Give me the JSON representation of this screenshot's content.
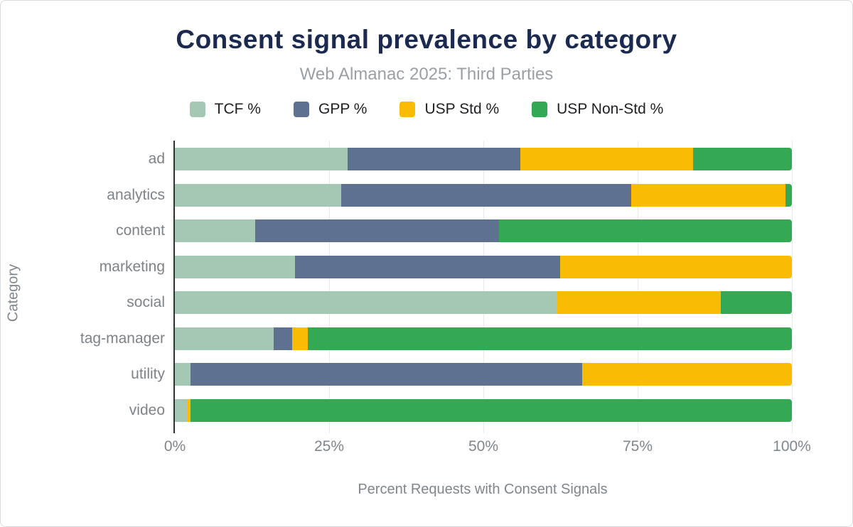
{
  "header": {
    "title": "Consent signal prevalence by category",
    "subtitle": "Web Almanac 2025: Third Parties"
  },
  "colors": {
    "title": "#1b2a4e",
    "subtitle": "#9aa0a6",
    "axis_text": "#7f868c",
    "gridline": "#e8eaed",
    "axis_line": "#2f3133"
  },
  "chart_data": {
    "type": "bar",
    "stacked": true,
    "orientation": "horizontal",
    "title": "Consent signal prevalence by category",
    "subtitle": "Web Almanac 2025: Third Parties",
    "xlabel": "Percent Requests with Consent Signals",
    "ylabel": "Category",
    "xlim": [
      0,
      100
    ],
    "x_ticks": [
      "0%",
      "25%",
      "50%",
      "75%",
      "100%"
    ],
    "grid": true,
    "legend_position": "top",
    "categories": [
      "ad",
      "analytics",
      "content",
      "marketing",
      "social",
      "tag-manager",
      "utility",
      "video"
    ],
    "series": [
      {
        "name": "TCF %",
        "color": "#a5c8b5",
        "values": [
          28,
          27,
          13,
          19.5,
          62,
          16,
          2.5,
          2
        ]
      },
      {
        "name": "GPP %",
        "color": "#5e7190",
        "values": [
          28,
          47,
          39.5,
          43,
          0,
          3,
          63.5,
          0
        ]
      },
      {
        "name": "USP Std %",
        "color": "#f9bc03",
        "values": [
          28,
          25,
          0,
          37.5,
          26.5,
          2.5,
          34,
          0.5
        ]
      },
      {
        "name": "USP Non-Std %",
        "color": "#34a853",
        "values": [
          16,
          1,
          47.5,
          0,
          11.5,
          78.5,
          0,
          97.5
        ]
      }
    ]
  }
}
